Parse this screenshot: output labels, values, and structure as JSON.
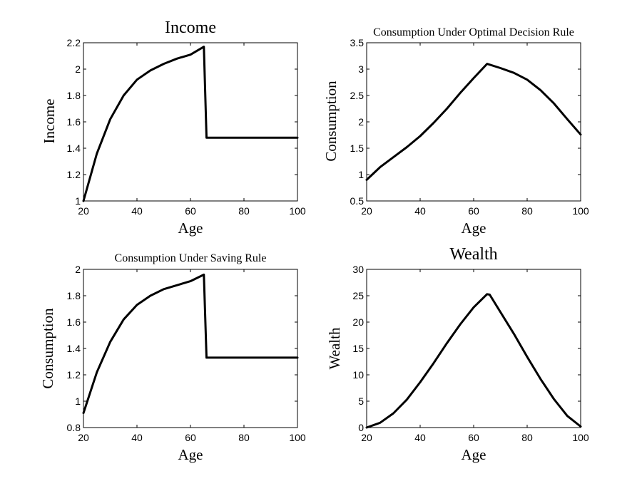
{
  "chart_data": [
    {
      "type": "line",
      "title": "Income",
      "xlabel": "Age",
      "ylabel": "Income",
      "xlim": [
        20,
        100
      ],
      "ylim": [
        1,
        2.2
      ],
      "xticks": [
        20,
        40,
        60,
        80,
        100
      ],
      "yticks": [
        1,
        1.2,
        1.4,
        1.6,
        1.8,
        2,
        2.2
      ],
      "ytick_labels": [
        "1",
        "1.2",
        "1.4",
        "1.6",
        "1.8",
        "2",
        "2.2"
      ],
      "series": [
        {
          "x": [
            20,
            25,
            30,
            35,
            40,
            45,
            50,
            55,
            60,
            65,
            66,
            70,
            80,
            90,
            100
          ],
          "y": [
            1.0,
            1.36,
            1.62,
            1.8,
            1.92,
            1.99,
            2.04,
            2.08,
            2.11,
            2.17,
            1.48,
            1.48,
            1.48,
            1.48,
            1.48
          ]
        }
      ]
    },
    {
      "type": "line",
      "title": "Consumption Under Optimal Decision Rule",
      "xlabel": "Age",
      "ylabel": "Consumption",
      "xlim": [
        20,
        100
      ],
      "ylim": [
        0.5,
        3.5
      ],
      "xticks": [
        20,
        40,
        60,
        80,
        100
      ],
      "yticks": [
        0.5,
        1,
        1.5,
        2,
        2.5,
        3,
        3.5
      ],
      "ytick_labels": [
        "0.5",
        "1",
        "1.5",
        "2",
        "2.5",
        "3",
        "3.5"
      ],
      "series": [
        {
          "x": [
            20,
            25,
            30,
            35,
            40,
            45,
            50,
            55,
            60,
            65,
            70,
            75,
            80,
            85,
            90,
            95,
            100
          ],
          "y": [
            0.9,
            1.14,
            1.33,
            1.52,
            1.73,
            1.98,
            2.25,
            2.55,
            2.83,
            3.1,
            3.02,
            2.93,
            2.8,
            2.6,
            2.35,
            2.05,
            1.76
          ]
        }
      ]
    },
    {
      "type": "line",
      "title": "Consumption Under Saving Rule",
      "xlabel": "Age",
      "ylabel": "Consumption",
      "xlim": [
        20,
        100
      ],
      "ylim": [
        0.8,
        2
      ],
      "xticks": [
        20,
        40,
        60,
        80,
        100
      ],
      "yticks": [
        0.8,
        1,
        1.2,
        1.4,
        1.6,
        1.8,
        2
      ],
      "ytick_labels": [
        "0.8",
        "1",
        "1.2",
        "1.4",
        "1.6",
        "1.8",
        "2"
      ],
      "series": [
        {
          "x": [
            20,
            25,
            30,
            35,
            40,
            45,
            50,
            55,
            60,
            65,
            66,
            70,
            80,
            90,
            100
          ],
          "y": [
            0.91,
            1.22,
            1.45,
            1.62,
            1.73,
            1.8,
            1.85,
            1.88,
            1.91,
            1.96,
            1.33,
            1.33,
            1.33,
            1.33,
            1.33
          ]
        }
      ]
    },
    {
      "type": "line",
      "title": "Wealth",
      "xlabel": "Age",
      "ylabel": "Wealth",
      "xlim": [
        20,
        100
      ],
      "ylim": [
        0,
        30
      ],
      "xticks": [
        20,
        40,
        60,
        80,
        100
      ],
      "yticks": [
        0,
        5,
        10,
        15,
        20,
        25,
        30
      ],
      "ytick_labels": [
        "0",
        "5",
        "10",
        "15",
        "20",
        "25",
        "30"
      ],
      "series": [
        {
          "x": [
            20,
            25,
            30,
            35,
            40,
            45,
            50,
            55,
            60,
            65,
            66,
            70,
            75,
            80,
            85,
            90,
            95,
            100
          ],
          "y": [
            0.0,
            0.9,
            2.7,
            5.3,
            8.6,
            12.2,
            16.0,
            19.6,
            22.8,
            25.3,
            25.2,
            21.9,
            17.8,
            13.4,
            9.2,
            5.4,
            2.2,
            0.2
          ]
        }
      ]
    }
  ]
}
